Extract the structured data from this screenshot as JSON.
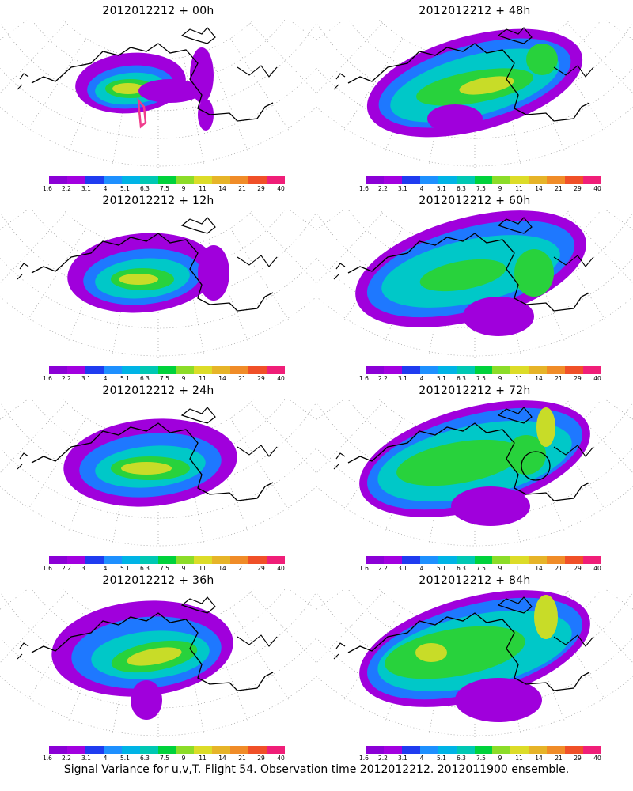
{
  "panels": [
    {
      "title": "2012012212 + 00h"
    },
    {
      "title": "2012012212 + 48h"
    },
    {
      "title": "2012012212 + 12h"
    },
    {
      "title": "2012012212 + 60h"
    },
    {
      "title": "2012012212 + 24h"
    },
    {
      "title": "2012012212 + 72h"
    },
    {
      "title": "2012012212 + 36h"
    },
    {
      "title": "2012012212 + 84h"
    }
  ],
  "colorbar": {
    "labels": [
      "1.6",
      "2.2",
      "3.1",
      "4",
      "5.1",
      "6.3",
      "7.5",
      "9",
      "11",
      "14",
      "21",
      "29",
      "40"
    ],
    "colors": [
      "#8b00d6",
      "#a200e0",
      "#1f3cf0",
      "#1e90ff",
      "#00b4e6",
      "#00c8b4",
      "#00d23c",
      "#8cdc28",
      "#dcdc28",
      "#e6b428",
      "#f08c28",
      "#f05028",
      "#f01e78"
    ]
  },
  "footer": "Signal Variance for u,v,T. Flight 54. Observation time 2012012212. 2012011900 ensemble."
}
